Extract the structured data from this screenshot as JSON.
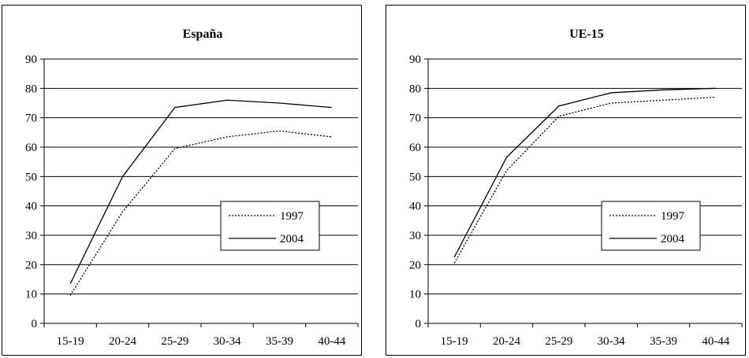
{
  "chart_data": [
    {
      "type": "line",
      "title": "España",
      "xlabel": "",
      "ylabel": "",
      "categories": [
        "15-19",
        "20-24",
        "25-29",
        "30-34",
        "35-39",
        "40-44"
      ],
      "ylim": [
        0,
        90
      ],
      "yticks": [
        0,
        10,
        20,
        30,
        40,
        50,
        60,
        70,
        80,
        90
      ],
      "grid": true,
      "legend_position": "right",
      "series": [
        {
          "name": "1997",
          "style": "dotted",
          "values": [
            9.5,
            38,
            59.5,
            63.5,
            65.5,
            63.5
          ]
        },
        {
          "name": "2004",
          "style": "solid",
          "values": [
            13.5,
            50,
            73.5,
            76,
            75,
            73.5
          ]
        }
      ]
    },
    {
      "type": "line",
      "title": "UE-15",
      "xlabel": "",
      "ylabel": "",
      "categories": [
        "15-19",
        "20-24",
        "25-29",
        "30-34",
        "35-39",
        "40-44"
      ],
      "ylim": [
        0,
        90
      ],
      "yticks": [
        0,
        10,
        20,
        30,
        40,
        50,
        60,
        70,
        80,
        90
      ],
      "grid": true,
      "legend_position": "right",
      "series": [
        {
          "name": "1997",
          "style": "dotted",
          "values": [
            20.5,
            52,
            70.5,
            75,
            76,
            77
          ]
        },
        {
          "name": "2004",
          "style": "solid",
          "values": [
            22.5,
            56.5,
            74,
            78.5,
            79.5,
            80
          ]
        }
      ]
    }
  ]
}
